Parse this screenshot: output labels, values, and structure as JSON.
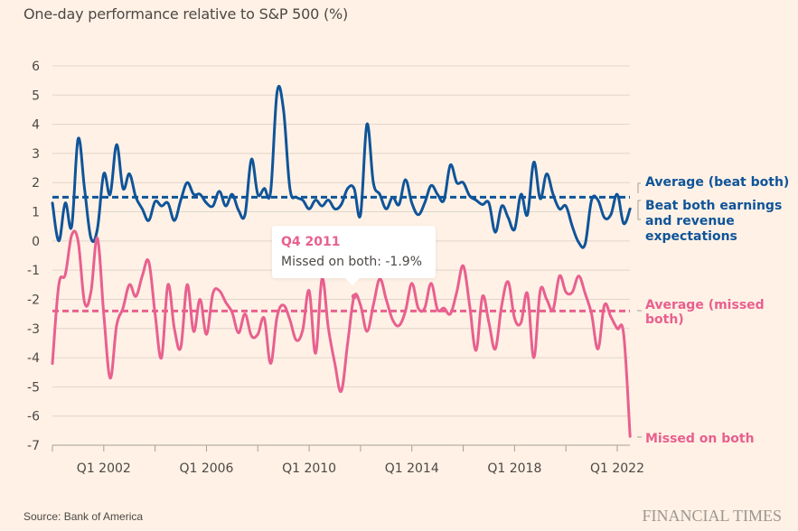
{
  "chart_data": {
    "type": "line",
    "title": "One-day performance relative to S&P 500 (%)",
    "xlabel": "",
    "ylabel": "",
    "ylim": [
      -7,
      6
    ],
    "yticks": [
      6,
      5,
      4,
      3,
      2,
      1,
      0,
      -1,
      -2,
      -3,
      -4,
      -5,
      -6,
      -7
    ],
    "xticks": [
      "Q1 2002",
      "Q1 2006",
      "Q1 2010",
      "Q1 2014",
      "Q1 2018",
      "Q1 2022"
    ],
    "x_start": "Q1 2000",
    "x_end": "Q3 2022",
    "x_frequency": "quarterly",
    "grid": true,
    "series": [
      {
        "name": "Beat both earnings and revenue expectations",
        "color": "#0f5499",
        "values": [
          1.3,
          0.0,
          1.3,
          0.5,
          3.5,
          1.8,
          0.1,
          0.4,
          2.3,
          1.6,
          3.3,
          1.8,
          2.3,
          1.5,
          1.1,
          0.7,
          1.35,
          1.2,
          1.3,
          0.7,
          1.4,
          2.0,
          1.6,
          1.6,
          1.3,
          1.2,
          1.7,
          1.2,
          1.6,
          1.05,
          0.9,
          2.8,
          1.6,
          1.8,
          1.7,
          5.1,
          4.5,
          1.8,
          1.5,
          1.4,
          1.1,
          1.4,
          1.2,
          1.4,
          1.1,
          1.25,
          1.8,
          1.8,
          0.9,
          4.0,
          2.0,
          1.6,
          1.1,
          1.5,
          1.25,
          2.1,
          1.3,
          0.9,
          1.3,
          1.9,
          1.6,
          1.4,
          2.6,
          2.0,
          2.0,
          1.55,
          1.4,
          1.25,
          1.3,
          0.3,
          1.2,
          0.8,
          0.4,
          1.6,
          0.9,
          2.7,
          1.45,
          2.3,
          1.6,
          1.1,
          1.2,
          0.5,
          -0.05,
          -0.1,
          1.4,
          1.4,
          0.8,
          0.9,
          1.6,
          0.6,
          1.1
        ]
      },
      {
        "name": "Missed on both",
        "color": "#e8608f",
        "values": [
          -4.2,
          -1.5,
          -1.15,
          0.2,
          0.0,
          -2.1,
          -1.75,
          0.1,
          -2.5,
          -4.7,
          -2.9,
          -2.3,
          -1.5,
          -1.9,
          -1.2,
          -0.7,
          -2.5,
          -4.0,
          -1.5,
          -3.0,
          -3.65,
          -1.5,
          -3.1,
          -2.0,
          -3.2,
          -1.8,
          -1.7,
          -2.1,
          -2.45,
          -3.15,
          -2.5,
          -3.25,
          -3.2,
          -2.65,
          -4.2,
          -2.6,
          -2.2,
          -2.7,
          -3.4,
          -3.05,
          -1.7,
          -3.85,
          -1.3,
          -3.0,
          -4.2,
          -5.15,
          -3.5,
          -1.9,
          -2.2,
          -3.1,
          -2.2,
          -1.3,
          -2.0,
          -2.7,
          -2.9,
          -2.4,
          -1.45,
          -2.3,
          -2.3,
          -1.45,
          -2.35,
          -2.3,
          -2.5,
          -1.75,
          -0.85,
          -2.2,
          -3.75,
          -1.9,
          -2.8,
          -3.7,
          -2.2,
          -1.4,
          -2.65,
          -2.8,
          -1.8,
          -4.0,
          -1.7,
          -2.0,
          -2.35,
          -1.2,
          -1.75,
          -1.75,
          -1.2,
          -1.8,
          -2.5,
          -3.7,
          -2.2,
          -2.6,
          -3.0,
          -3.2,
          -6.7
        ]
      }
    ],
    "reference_lines": [
      {
        "name": "Average (beat both)",
        "value": 1.5,
        "color": "#0f5499",
        "style": "dashed"
      },
      {
        "name": "Average (missed both)",
        "value": -2.4,
        "color": "#e8608f",
        "style": "dashed"
      }
    ],
    "annotations": {
      "avg_beat": "Average (beat both)",
      "beat_line1": "Beat both earnings",
      "beat_line2": "and revenue",
      "beat_line3": "expectations",
      "avg_missed_line1": "Average (missed",
      "avg_missed_line2": "both)",
      "missed": "Missed on both"
    },
    "tooltip": {
      "period": "Q4 2011",
      "label": "Missed on both: -1.9%",
      "series": "Missed on both",
      "index": 47,
      "value": -1.9
    }
  },
  "footer": {
    "source": "Source: Bank of America",
    "brand": "FINANCIAL TIMES"
  }
}
